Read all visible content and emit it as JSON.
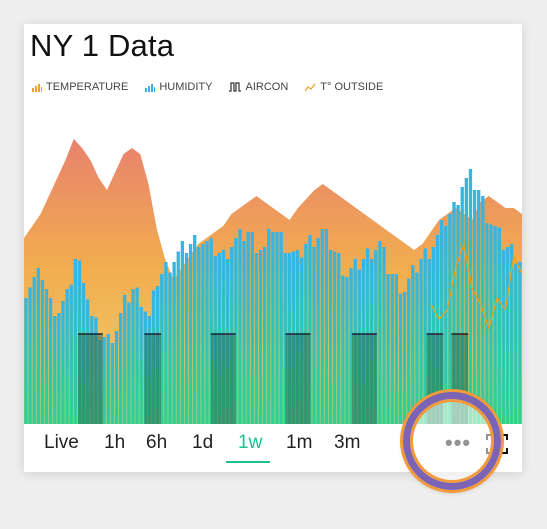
{
  "title": "NY 1 Data",
  "legend": [
    {
      "label": "TEMPERATURE",
      "icon": "bar-chart-icon",
      "color": "#f0a030"
    },
    {
      "label": "HUMIDITY",
      "icon": "bar-chart-icon",
      "color": "#3ab0e8"
    },
    {
      "label": "AIRCON",
      "icon": "step-signal-icon",
      "color": "#333333"
    },
    {
      "label": "T° OUTSIDE",
      "icon": "line-chart-icon",
      "color": "#f0a030"
    }
  ],
  "time_ranges": [
    {
      "label": "Live",
      "active": false
    },
    {
      "label": "1h",
      "active": false
    },
    {
      "label": "6h",
      "active": false
    },
    {
      "label": "1d",
      "active": false
    },
    {
      "label": "1w",
      "active": true
    },
    {
      "label": "1m",
      "active": false
    },
    {
      "label": "3m",
      "active": false
    }
  ],
  "actions": {
    "more_label": "•••",
    "more_icon": "more-horizontal-icon",
    "expand_icon": "expand-icon"
  },
  "colors": {
    "accent": "#1fbf8f",
    "temp_top": "#e88a6a",
    "temp_mid": "#f2b04a",
    "teal": "#26c6a0",
    "blue": "#3bb2e6",
    "aircon": "#2f6a56",
    "outside": "#e8a020",
    "ring": "#7b63b6",
    "ring_outer": "#f39a3a"
  },
  "chart_data": {
    "type": "area",
    "series": [
      {
        "name": "TEMPERATURE",
        "values": [
          62,
          66,
          70,
          76,
          82,
          88,
          95,
          92,
          88,
          82,
          78,
          84,
          90,
          92,
          90,
          80,
          65,
          55,
          48,
          52,
          56,
          60,
          62,
          64,
          66,
          70,
          72,
          74,
          76,
          74,
          72,
          70,
          68,
          72,
          75,
          78,
          80,
          78,
          76,
          74,
          72,
          70,
          68,
          66,
          64,
          62,
          60,
          58,
          60,
          64,
          68,
          70,
          72,
          70,
          68,
          74,
          76,
          74,
          72,
          72,
          70
        ]
      },
      {
        "name": "HUMIDITY",
        "values": [
          45,
          48,
          50,
          40,
          38,
          42,
          55,
          50,
          35,
          30,
          28,
          32,
          40,
          45,
          42,
          35,
          48,
          52,
          55,
          58,
          60,
          62,
          60,
          58,
          56,
          60,
          62,
          64,
          60,
          58,
          66,
          62,
          58,
          55,
          60,
          62,
          64,
          60,
          55,
          50,
          52,
          55,
          58,
          60,
          52,
          48,
          45,
          50,
          55,
          58,
          62,
          68,
          72,
          80,
          82,
          78,
          70,
          65,
          60,
          58,
          55
        ]
      },
      {
        "name": "AIRCON",
        "values": [
          0,
          0,
          0,
          0,
          0,
          0,
          0,
          1,
          1,
          1,
          0,
          0,
          0,
          0,
          0,
          1,
          1,
          0,
          0,
          0,
          0,
          0,
          0,
          1,
          1,
          1,
          0,
          0,
          0,
          0,
          0,
          0,
          1,
          1,
          1,
          0,
          0,
          0,
          0,
          0,
          1,
          1,
          1,
          0,
          0,
          0,
          0,
          0,
          0,
          1,
          1,
          0,
          1,
          1,
          0,
          0,
          0,
          0,
          0,
          0,
          0
        ]
      },
      {
        "name": "T° OUTSIDE",
        "values": [
          null,
          null,
          null,
          null,
          null,
          null,
          null,
          null,
          null,
          null,
          null,
          null,
          null,
          null,
          null,
          null,
          null,
          null,
          null,
          null,
          null,
          null,
          null,
          null,
          null,
          null,
          null,
          null,
          null,
          null,
          null,
          null,
          null,
          null,
          null,
          null,
          null,
          null,
          null,
          null,
          null,
          null,
          null,
          null,
          null,
          null,
          null,
          null,
          null,
          40,
          35,
          38,
          52,
          60,
          45,
          40,
          32,
          42,
          38,
          56,
          50
        ]
      }
    ],
    "ylim": [
      0,
      100
    ],
    "grid": false,
    "legend_position": "top-left"
  }
}
